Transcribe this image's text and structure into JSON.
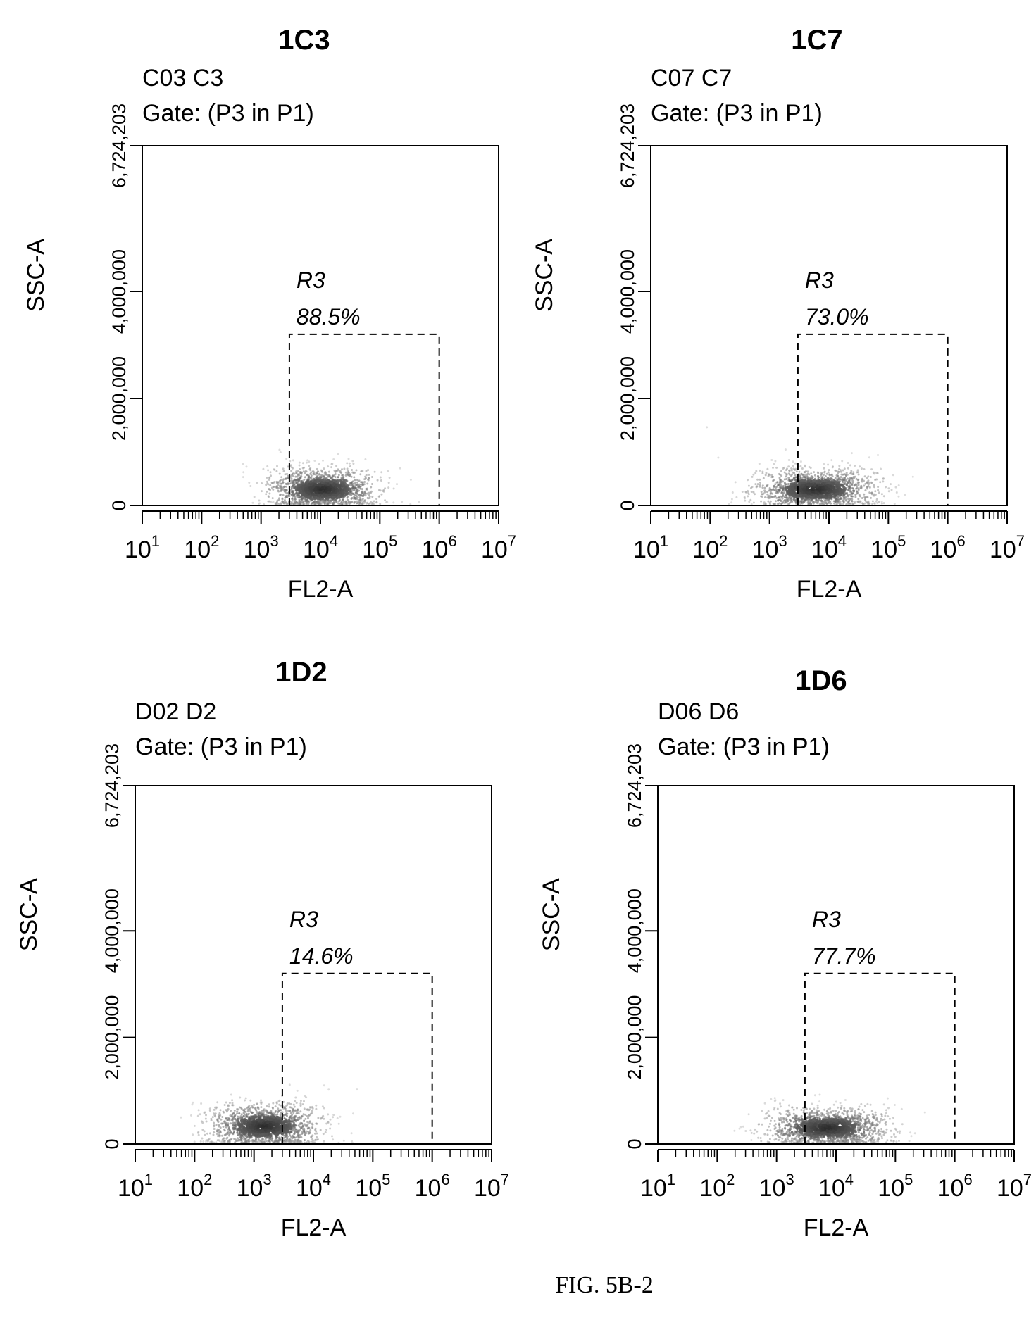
{
  "figure": {
    "caption": "FIG. 5B-2"
  },
  "chart_data": [
    {
      "type": "scatter",
      "title": "1C3",
      "sample": "C03 C3",
      "gate": "Gate: (P3 in P1)",
      "xlabel": "FL2-A",
      "ylabel": "SSC-A",
      "x_scale": "log",
      "xlim": [
        10,
        10000000
      ],
      "ylim": [
        0,
        6724203
      ],
      "x_ticks": [
        1,
        2,
        3,
        4,
        5,
        6,
        7
      ],
      "y_ticks": [
        {
          "value": 0,
          "label": "0"
        },
        {
          "value": 2000000,
          "label": "2,000,000"
        },
        {
          "value": 4000000,
          "label": "4,000,000"
        },
        {
          "value": 6724203,
          "label": "6,724,203"
        }
      ],
      "region": {
        "name": "R3",
        "percent": "88.5%",
        "x": [
          3000,
          1000000
        ],
        "y": [
          0,
          3200000
        ]
      },
      "density": {
        "center_x": 11000,
        "center_y": 300000,
        "spread_log_x": 0.45,
        "spread_y": 170000
      }
    },
    {
      "type": "scatter",
      "title": "1C7",
      "sample": "C07 C7",
      "gate": "Gate: (P3 in P1)",
      "xlabel": "FL2-A",
      "ylabel": "SSC-A",
      "x_scale": "log",
      "xlim": [
        10,
        10000000
      ],
      "ylim": [
        0,
        6724203
      ],
      "x_ticks": [
        1,
        2,
        3,
        4,
        5,
        6,
        7
      ],
      "y_ticks": [
        {
          "value": 0,
          "label": "0"
        },
        {
          "value": 2000000,
          "label": "2,000,000"
        },
        {
          "value": 4000000,
          "label": "4,000,000"
        },
        {
          "value": 6724203,
          "label": "6,724,203"
        }
      ],
      "region": {
        "name": "R3",
        "percent": "73.0%",
        "x": [
          3000,
          1000000
        ],
        "y": [
          0,
          3200000
        ]
      },
      "density": {
        "center_x": 6000,
        "center_y": 300000,
        "spread_log_x": 0.5,
        "spread_y": 160000
      }
    },
    {
      "type": "scatter",
      "title": "1D2",
      "sample": "D02 D2",
      "gate": "Gate: (P3 in P1)",
      "xlabel": "FL2-A",
      "ylabel": "SSC-A",
      "x_scale": "log",
      "xlim": [
        10,
        10000000
      ],
      "ylim": [
        0,
        6724203
      ],
      "x_ticks": [
        1,
        2,
        3,
        4,
        5,
        6,
        7
      ],
      "y_ticks": [
        {
          "value": 0,
          "label": "0"
        },
        {
          "value": 2000000,
          "label": "2,000,000"
        },
        {
          "value": 4000000,
          "label": "4,000,000"
        },
        {
          "value": 6724203,
          "label": "6,724,203"
        }
      ],
      "region": {
        "name": "R3",
        "percent": "14.6%",
        "x": [
          3000,
          1000000
        ],
        "y": [
          0,
          3200000
        ]
      },
      "density": {
        "center_x": 1500,
        "center_y": 330000,
        "spread_log_x": 0.45,
        "spread_y": 180000
      }
    },
    {
      "type": "scatter",
      "title": "1D6",
      "sample": "D06 D6",
      "gate": "Gate: (P3 in P1)",
      "xlabel": "FL2-A",
      "ylabel": "SSC-A",
      "x_scale": "log",
      "xlim": [
        10,
        10000000
      ],
      "ylim": [
        0,
        6724203
      ],
      "x_ticks": [
        1,
        2,
        3,
        4,
        5,
        6,
        7
      ],
      "y_ticks": [
        {
          "value": 0,
          "label": "0"
        },
        {
          "value": 2000000,
          "label": "2,000,000"
        },
        {
          "value": 4000000,
          "label": "4,000,000"
        },
        {
          "value": 6724203,
          "label": "6,724,203"
        }
      ],
      "region": {
        "name": "R3",
        "percent": "77.7%",
        "x": [
          3000,
          1000000
        ],
        "y": [
          0,
          3200000
        ]
      },
      "density": {
        "center_x": 7000,
        "center_y": 300000,
        "spread_log_x": 0.5,
        "spread_y": 160000
      }
    }
  ]
}
